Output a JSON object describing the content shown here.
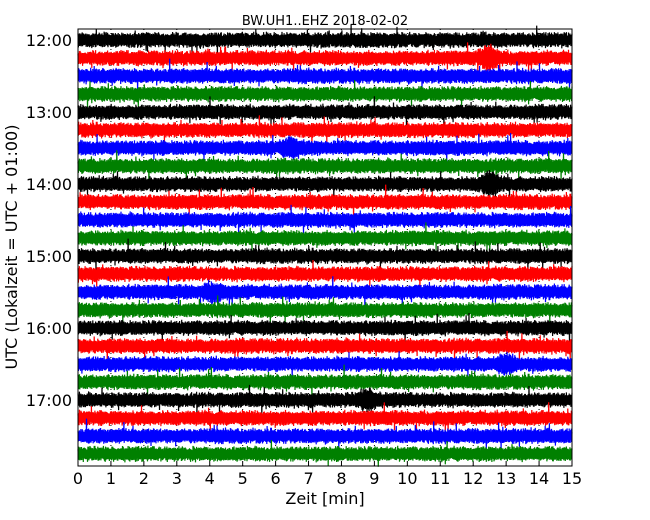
{
  "chart_data": {
    "type": "line",
    "title": "BW.UH1..EHZ 2018-02-02",
    "xlabel": "Zeit  [min]",
    "ylabel": "UTC (Lokalzeit = UTC + 01:00)",
    "xlim": [
      0,
      15
    ],
    "x_ticks": [
      "0",
      "1",
      "2",
      "3",
      "4",
      "5",
      "6",
      "7",
      "8",
      "9",
      "10",
      "11",
      "12",
      "13",
      "14",
      "15"
    ],
    "y_ticks": [
      "12:00",
      "13:00",
      "14:00",
      "15:00",
      "16:00",
      "17:00"
    ],
    "grid": "vertical dotted at each minute",
    "color_cycle": [
      "#000000",
      "#ff0000",
      "#0000ff",
      "#008000"
    ],
    "trace_interval_min": 15,
    "trace_starts": [
      "12:00",
      "12:15",
      "12:30",
      "12:45",
      "13:00",
      "13:15",
      "13:30",
      "13:45",
      "14:00",
      "14:15",
      "14:30",
      "14:45",
      "15:00",
      "15:15",
      "15:30",
      "15:45",
      "16:00",
      "16:15",
      "16:30",
      "16:45",
      "17:00",
      "17:15",
      "17:30",
      "17:45"
    ],
    "events": [
      {
        "trace": 1,
        "minute": 12.5,
        "amp": 2.0
      },
      {
        "trace": 6,
        "minute": 6.5,
        "amp": 1.8
      },
      {
        "trace": 8,
        "minute": 12.5,
        "amp": 2.0
      },
      {
        "trace": 14,
        "minute": 4.1,
        "amp": 1.7
      },
      {
        "trace": 18,
        "minute": 13.0,
        "amp": 1.6
      },
      {
        "trace": 20,
        "minute": 8.8,
        "amp": 1.8
      }
    ]
  }
}
